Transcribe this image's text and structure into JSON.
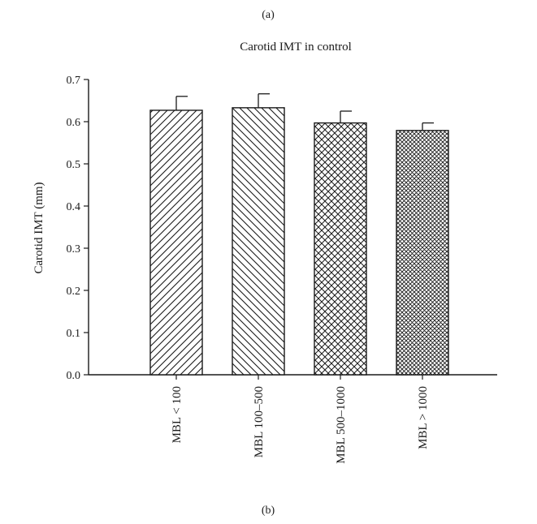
{
  "figure": {
    "label_top": "(a)",
    "label_bottom": "(b)"
  },
  "chart_data": {
    "type": "bar",
    "title": "Carotid IMT in control",
    "xlabel": "",
    "ylabel": "Carotid IMT (mm)",
    "ylim": [
      0.0,
      0.7
    ],
    "yticks": [
      "0.0",
      "0.1",
      "0.2",
      "0.3",
      "0.4",
      "0.5",
      "0.6",
      "0.7"
    ],
    "categories": [
      "MBL < 100",
      "MBL 100–500",
      "MBL 500–1000",
      "MBL > 1000"
    ],
    "values": [
      0.627,
      0.633,
      0.597,
      0.579
    ],
    "errors": [
      0.033,
      0.033,
      0.028,
      0.018
    ],
    "patterns": [
      "diagonal-forward",
      "diagonal-backward",
      "crosshatch",
      "fine-crosshatch"
    ],
    "grid": false,
    "legend": "none"
  }
}
